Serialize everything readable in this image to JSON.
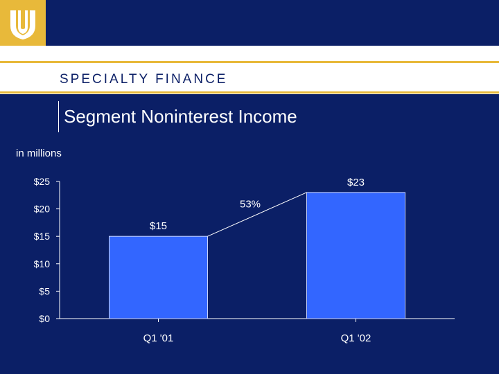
{
  "header": {
    "logo_icon": "three-chevron-shield-icon",
    "section_label": "SPECIALTY FINANCE"
  },
  "slide": {
    "title": "Segment Noninterest Income",
    "units": "in millions"
  },
  "colors": {
    "background": "#0B1F66",
    "accent_gold": "#E8B93A",
    "bar_fill": "#3366FF",
    "text": "#FFFFFF"
  },
  "chart_data": {
    "type": "bar",
    "categories": [
      "Q1 '01",
      "Q1 '02"
    ],
    "values": [
      15,
      23
    ],
    "data_labels": [
      "$15",
      "$23"
    ],
    "ylim": [
      0,
      25
    ],
    "yticks": [
      0,
      5,
      10,
      15,
      20,
      25
    ],
    "ytick_labels": [
      "$0",
      "$5",
      "$10",
      "$15",
      "$20",
      "$25"
    ],
    "annotation": "53%",
    "title": "",
    "xlabel": "",
    "ylabel": "",
    "grid": false,
    "legend": "none"
  }
}
